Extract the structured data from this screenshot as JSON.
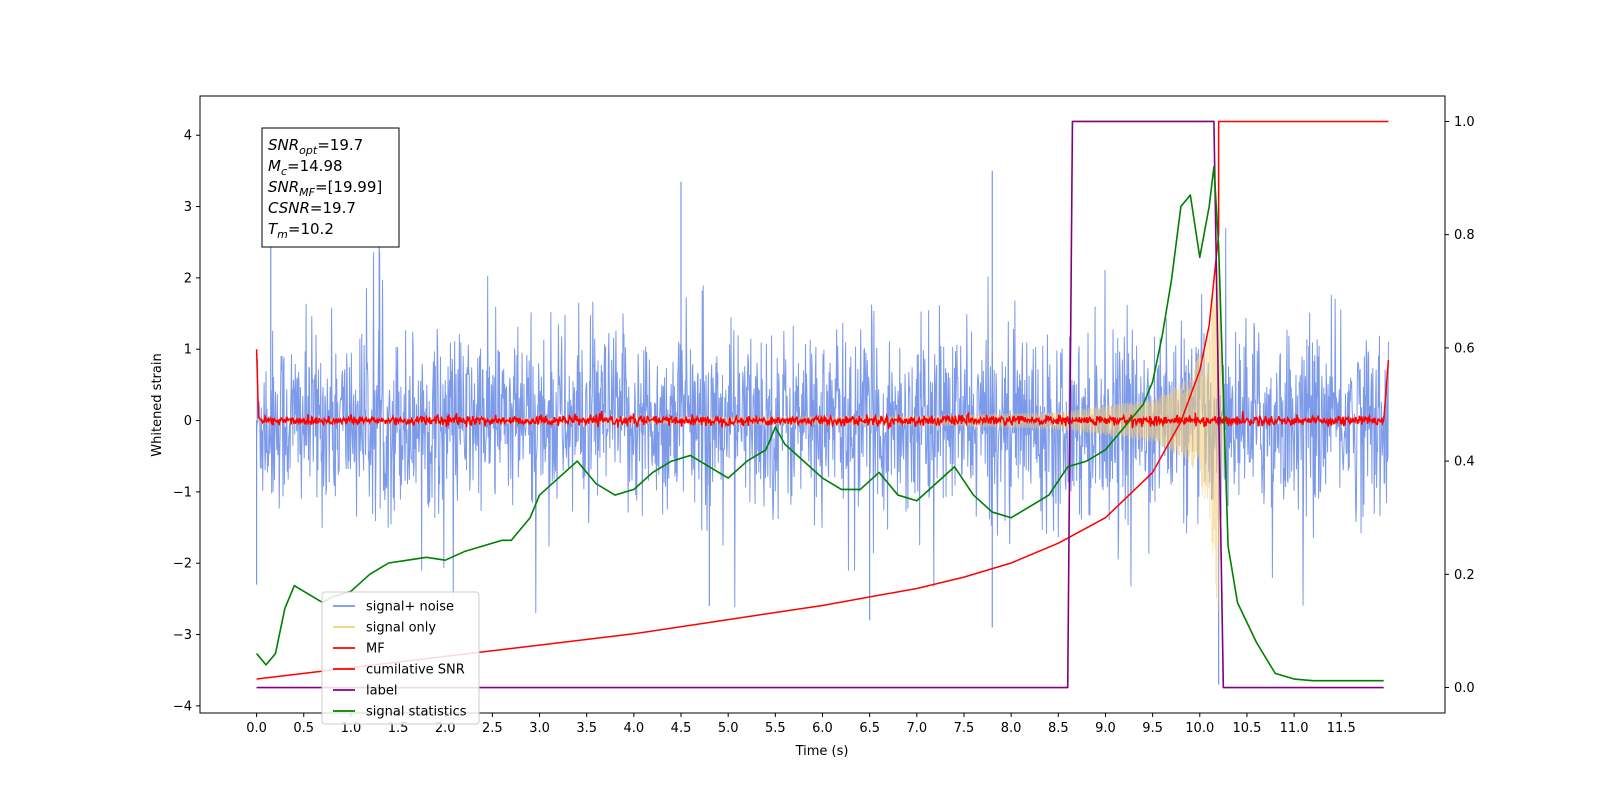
{
  "chart_data": {
    "type": "line",
    "xlabel": "Time (s)",
    "ylabel": "Whitened strain",
    "xlim": [
      -0.6,
      12.6
    ],
    "ylim": [
      -4.1,
      4.55
    ],
    "ylim_right": [
      -0.045,
      1.045
    ],
    "x_ticks": [
      "0.0",
      "0.5",
      "1.0",
      "1.5",
      "2.0",
      "2.5",
      "3.0",
      "3.5",
      "4.0",
      "4.5",
      "5.0",
      "5.5",
      "6.0",
      "6.5",
      "7.0",
      "7.5",
      "8.0",
      "8.5",
      "9.0",
      "9.5",
      "10.0",
      "10.5",
      "11.0",
      "11.5"
    ],
    "y_ticks_left": [
      "4",
      "3",
      "2",
      "1",
      "0",
      "−1",
      "−2",
      "−3",
      "−4"
    ],
    "y_ticks_right": [
      "1.0",
      "0.8",
      "0.6",
      "0.4",
      "0.2",
      "0.0"
    ],
    "info_box": {
      "snr_opt": {
        "base": "SNR",
        "sub": "opt",
        "value": "=19.7"
      },
      "mc": {
        "base": "M",
        "sub": "c",
        "value": "=14.98"
      },
      "snr_mf": {
        "base": "SNR",
        "sub": "MF",
        "value": "=[19.99]"
      },
      "csnr": {
        "base": "CSNR",
        "sub": "",
        "value": "=19.7"
      },
      "tm": {
        "base": "T",
        "sub": "m",
        "value": "=10.2"
      }
    },
    "legend": {
      "placement": "lower-left",
      "entries": [
        {
          "label": "signal+ noise",
          "color": "#7595e8"
        },
        {
          "label": "signal only",
          "color": "#f5cf7a"
        },
        {
          "label": "MF",
          "color": "#ff0000"
        },
        {
          "label": "cumilative SNR",
          "color": "#ff0000"
        },
        {
          "label": "label",
          "color": "#800080"
        },
        {
          "label": "signal statistics",
          "color": "#008000"
        }
      ]
    },
    "series": [
      {
        "name": "signal+ noise",
        "axis": "left",
        "color": "#7595e8",
        "style": "noise-band",
        "x_range": [
          0.0,
          12.0
        ],
        "upper_envelope_typical": 1.6,
        "lower_envelope_typical": -1.6,
        "spikes": [
          {
            "x": 0.0,
            "y": -2.3
          },
          {
            "x": 0.15,
            "y": 2.5
          },
          {
            "x": 1.3,
            "y": 2.6
          },
          {
            "x": 4.5,
            "y": 3.35
          },
          {
            "x": 7.8,
            "y": 3.5
          },
          {
            "x": 10.2,
            "y": -3.7
          },
          {
            "x": 4.8,
            "y": -2.6
          },
          {
            "x": 6.5,
            "y": -2.8
          },
          {
            "x": 7.8,
            "y": -2.9
          }
        ]
      },
      {
        "name": "signal only",
        "axis": "left",
        "color": "#f5cf7a",
        "style": "chirp",
        "x_range": [
          0.0,
          10.25
        ],
        "amplitude": [
          {
            "x": 0.0,
            "y": 0.02
          },
          {
            "x": 7.0,
            "y": 0.06
          },
          {
            "x": 8.5,
            "y": 0.12
          },
          {
            "x": 9.5,
            "y": 0.3
          },
          {
            "x": 9.9,
            "y": 0.6
          },
          {
            "x": 10.1,
            "y": 1.3
          },
          {
            "x": 10.2,
            "y": 2.9
          },
          {
            "x": 10.25,
            "y": 0.0
          }
        ]
      },
      {
        "name": "MF",
        "axis": "left",
        "color": "#ff0000",
        "style": "noisy-flat",
        "x": [
          0.0,
          0.02,
          0.05,
          11.95,
          12.0
        ],
        "y": [
          1.0,
          0.05,
          0.0,
          0.0,
          0.85
        ]
      },
      {
        "name": "cumilative SNR",
        "axis": "right",
        "color": "#ff0000",
        "x": [
          0.0,
          1.0,
          2.0,
          3.0,
          4.0,
          5.0,
          6.0,
          7.0,
          7.5,
          8.0,
          8.5,
          9.0,
          9.5,
          9.8,
          10.0,
          10.1,
          10.15,
          10.2,
          10.2,
          12.0
        ],
        "y": [
          0.015,
          0.035,
          0.055,
          0.075,
          0.095,
          0.12,
          0.145,
          0.175,
          0.195,
          0.22,
          0.255,
          0.3,
          0.38,
          0.47,
          0.56,
          0.64,
          0.72,
          0.8,
          1.0,
          1.0
        ]
      },
      {
        "name": "label",
        "axis": "right",
        "color": "#800080",
        "x": [
          0.0,
          8.6,
          8.65,
          10.15,
          10.25,
          11.95
        ],
        "y": [
          0.0,
          0.0,
          1.0,
          1.0,
          0.0,
          0.0
        ]
      },
      {
        "name": "signal statistics",
        "axis": "right",
        "color": "#008000",
        "x": [
          0.0,
          0.1,
          0.2,
          0.3,
          0.4,
          0.5,
          0.6,
          0.7,
          0.8,
          1.0,
          1.2,
          1.4,
          1.6,
          1.8,
          2.0,
          2.2,
          2.4,
          2.6,
          2.7,
          2.8,
          2.9,
          3.0,
          3.2,
          3.4,
          3.6,
          3.8,
          4.0,
          4.2,
          4.4,
          4.6,
          4.8,
          5.0,
          5.2,
          5.4,
          5.5,
          5.6,
          5.8,
          6.0,
          6.2,
          6.4,
          6.6,
          6.8,
          7.0,
          7.2,
          7.4,
          7.6,
          7.8,
          8.0,
          8.2,
          8.4,
          8.6,
          8.8,
          9.0,
          9.2,
          9.4,
          9.5,
          9.6,
          9.7,
          9.8,
          9.9,
          10.0,
          10.1,
          10.15,
          10.2,
          10.3,
          10.4,
          10.6,
          10.8,
          11.0,
          11.2,
          11.5,
          11.8,
          11.95
        ],
        "y": [
          0.06,
          0.04,
          0.06,
          0.14,
          0.18,
          0.17,
          0.16,
          0.15,
          0.16,
          0.17,
          0.2,
          0.22,
          0.225,
          0.23,
          0.225,
          0.24,
          0.25,
          0.26,
          0.26,
          0.28,
          0.3,
          0.34,
          0.37,
          0.4,
          0.36,
          0.34,
          0.35,
          0.38,
          0.4,
          0.41,
          0.39,
          0.37,
          0.4,
          0.42,
          0.46,
          0.43,
          0.4,
          0.37,
          0.35,
          0.35,
          0.38,
          0.34,
          0.33,
          0.36,
          0.39,
          0.34,
          0.31,
          0.3,
          0.32,
          0.34,
          0.39,
          0.4,
          0.42,
          0.46,
          0.5,
          0.54,
          0.62,
          0.72,
          0.85,
          0.87,
          0.76,
          0.85,
          0.92,
          0.78,
          0.25,
          0.15,
          0.08,
          0.025,
          0.015,
          0.012,
          0.012,
          0.012,
          0.012
        ]
      }
    ]
  }
}
